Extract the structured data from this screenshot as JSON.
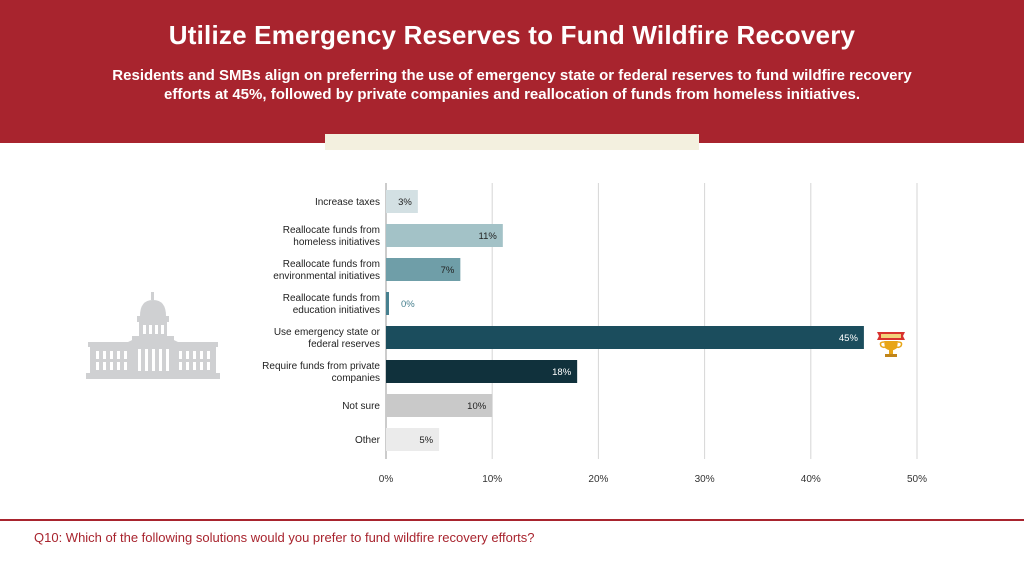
{
  "header": {
    "title": "Utilize Emergency Reserves to Fund Wildfire Recovery",
    "subtitle": "Residents and SMBs align on preferring the use of emergency state or federal reserves to fund wildfire recovery efforts at 45%, followed by private companies and reallocation of funds from homeless initiatives."
  },
  "footer": {
    "question": "Q10: Which of the following solutions would you prefer to fund wildfire recovery efforts?"
  },
  "icons": {
    "building": "capitol-building-icon",
    "winner": "trophy-icon"
  },
  "chart_data": {
    "type": "bar",
    "orientation": "horizontal",
    "categories": [
      [
        "Increase taxes"
      ],
      [
        "Reallocate funds from",
        "homeless initiatives"
      ],
      [
        "Reallocate funds from",
        "environmental initiatives"
      ],
      [
        "Reallocate funds from",
        "education initiatives"
      ],
      [
        "Use emergency state or",
        "federal reserves"
      ],
      [
        "Require funds from private",
        "companies"
      ],
      [
        "Not sure"
      ],
      [
        "Other"
      ]
    ],
    "values": [
      3,
      11,
      7,
      0,
      45,
      18,
      10,
      5
    ],
    "value_labels": [
      "3%",
      "11%",
      "7%",
      "0%",
      "45%",
      "18%",
      "10%",
      "5%"
    ],
    "colors": [
      "#d3e0e3",
      "#a3c2c7",
      "#6f9ea8",
      "#47808f",
      "#1b4d5d",
      "#10313c",
      "#c9c9c9",
      "#ebebeb"
    ],
    "label_colors": [
      "#222222",
      "#222222",
      "#222222",
      "#47808f",
      "#ffffff",
      "#ffffff",
      "#222222",
      "#222222"
    ],
    "xlim": [
      0,
      50
    ],
    "xticks": [
      0,
      10,
      20,
      30,
      40,
      50
    ],
    "xtick_labels": [
      "0%",
      "10%",
      "20%",
      "30%",
      "40%",
      "50%"
    ],
    "grid": true,
    "highlight_index": 4
  }
}
